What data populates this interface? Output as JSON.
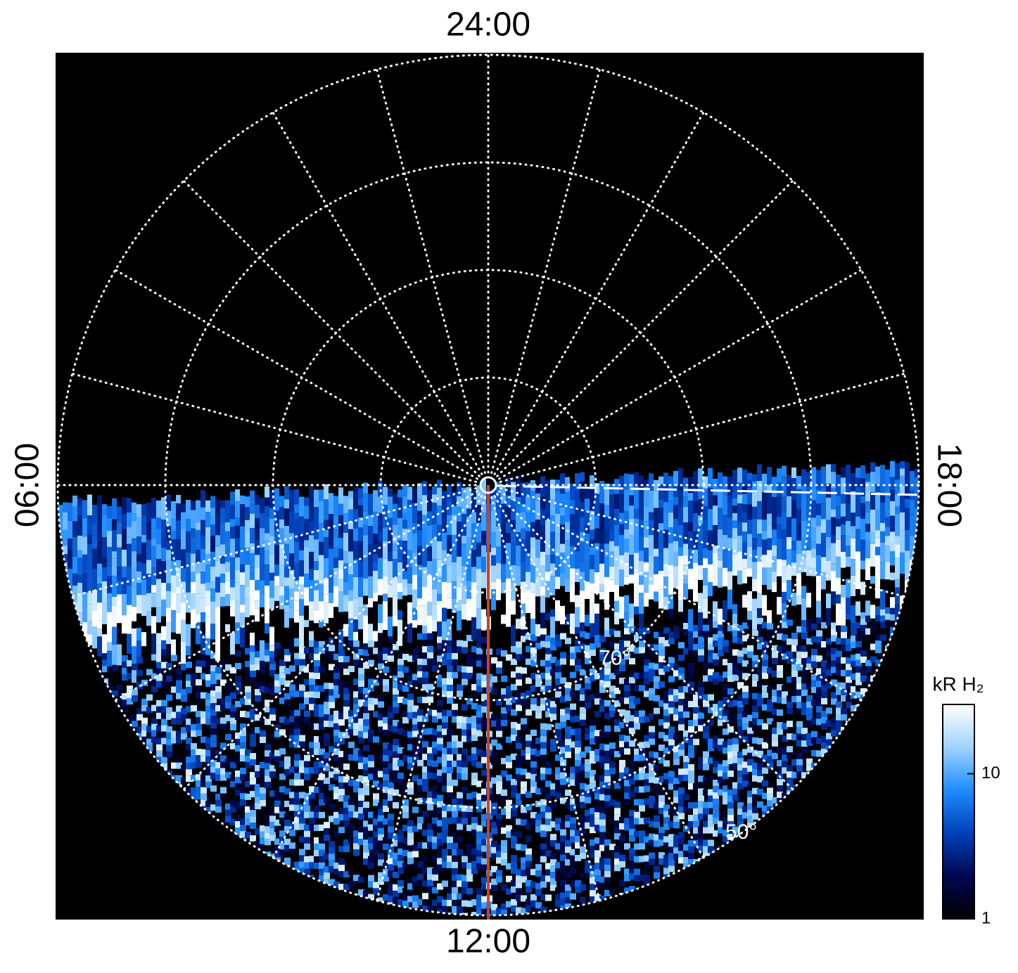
{
  "chart_data": {
    "type": "polar",
    "mlt_ticks": [
      {
        "value": 0,
        "label": "24:00"
      },
      {
        "value": 6,
        "label": "06:00"
      },
      {
        "value": 12,
        "label": "12:00"
      },
      {
        "value": 18,
        "label": "18:00"
      }
    ],
    "meridians": [
      0,
      1,
      2,
      3,
      4,
      5,
      6,
      7,
      8,
      9,
      10,
      11,
      12,
      13,
      14,
      15,
      16,
      17,
      18,
      19,
      20,
      21,
      22,
      23
    ],
    "rlim": [
      90,
      50
    ],
    "rticks": [
      80,
      70,
      60,
      50
    ],
    "rtick_labels": [
      null,
      "70°",
      null,
      "50°"
    ],
    "grid": true,
    "colorbar": {
      "label": "kR H₂",
      "clim": [
        1,
        30
      ],
      "ticks": [
        1,
        10
      ],
      "log": true,
      "colormap": [
        "#000000",
        "#000850",
        "#0040b8",
        "#1e8cff",
        "#9fd4ff",
        "#ffffff"
      ]
    }
  }
}
